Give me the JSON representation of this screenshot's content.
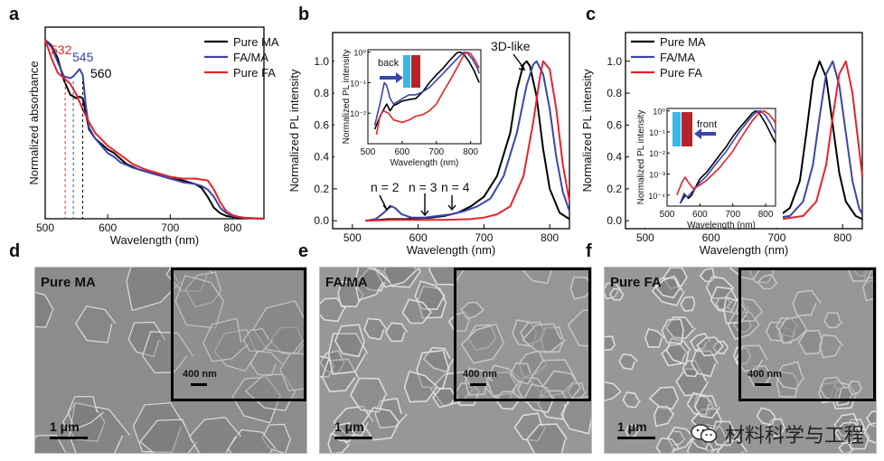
{
  "panel_letters": [
    "a",
    "b",
    "c",
    "d",
    "e",
    "f"
  ],
  "colors": {
    "ma": "#000000",
    "fama": "#3a46a8",
    "fa": "#e8232b",
    "blue_light": "#39b7e7",
    "red_dark": "#b8232a"
  },
  "chart_data": [
    {
      "panel": "a",
      "type": "line",
      "title": "",
      "xlabel": "Wavelength (nm)",
      "ylabel": "Normalized absorbance",
      "xlim": [
        500,
        850
      ],
      "ylim": [
        0,
        1.05
      ],
      "xticks": [
        500,
        600,
        700,
        800
      ],
      "yticks": [],
      "legend": [
        "Pure MA",
        "FA/MA",
        "Pure FA"
      ],
      "legend_position": "top-right",
      "annotations": [
        {
          "text": "532",
          "x": 532,
          "color": "#e8232b"
        },
        {
          "text": "545",
          "x": 545,
          "color": "#3a46a8"
        },
        {
          "text": "560",
          "x": 560,
          "color": "#000000"
        }
      ],
      "series": [
        {
          "name": "Pure MA",
          "color": "#000000",
          "x": [
            500,
            510,
            520,
            530,
            540,
            550,
            555,
            560,
            565,
            570,
            580,
            590,
            600,
            610,
            620,
            630,
            650,
            670,
            700,
            720,
            740,
            750,
            760,
            770,
            780,
            790,
            800,
            820,
            850
          ],
          "y": [
            0.98,
            0.95,
            0.88,
            0.76,
            0.68,
            0.66,
            0.67,
            0.66,
            0.58,
            0.49,
            0.44,
            0.41,
            0.38,
            0.36,
            0.33,
            0.3,
            0.27,
            0.25,
            0.22,
            0.21,
            0.19,
            0.17,
            0.12,
            0.06,
            0.03,
            0.015,
            0.01,
            0.005,
            0.0
          ]
        },
        {
          "name": "FA/MA",
          "color": "#3a46a8",
          "x": [
            500,
            510,
            520,
            530,
            540,
            545,
            550,
            555,
            560,
            565,
            570,
            580,
            590,
            600,
            610,
            620,
            640,
            660,
            680,
            700,
            720,
            740,
            750,
            760,
            770,
            780,
            790,
            800,
            820,
            850
          ],
          "y": [
            0.98,
            0.94,
            0.86,
            0.78,
            0.77,
            0.78,
            0.8,
            0.82,
            0.79,
            0.62,
            0.5,
            0.44,
            0.4,
            0.36,
            0.34,
            0.31,
            0.28,
            0.26,
            0.24,
            0.22,
            0.2,
            0.19,
            0.18,
            0.16,
            0.12,
            0.06,
            0.03,
            0.015,
            0.005,
            0.0
          ]
        },
        {
          "name": "Pure FA",
          "color": "#e8232b",
          "x": [
            500,
            510,
            520,
            530,
            540,
            550,
            560,
            570,
            580,
            600,
            620,
            640,
            660,
            680,
            700,
            720,
            740,
            760,
            770,
            780,
            790,
            800,
            810,
            820,
            850
          ],
          "y": [
            0.98,
            0.88,
            0.8,
            0.77,
            0.74,
            0.68,
            0.6,
            0.53,
            0.47,
            0.4,
            0.35,
            0.3,
            0.27,
            0.25,
            0.23,
            0.22,
            0.22,
            0.21,
            0.16,
            0.09,
            0.04,
            0.02,
            0.01,
            0.005,
            0.0
          ]
        }
      ]
    },
    {
      "panel": "b",
      "type": "line",
      "title": "",
      "xlabel": "Wavelength (nm)",
      "ylabel": "Normalized PL intensity",
      "xlim": [
        470,
        830
      ],
      "ylim": [
        -0.05,
        1.18
      ],
      "xticks": [
        500,
        600,
        700,
        800
      ],
      "yticks": [
        0.0,
        0.2,
        0.4,
        0.6,
        0.8,
        1.0
      ],
      "annotations": [
        "3D-like",
        "n = 2",
        "n = 3",
        "n = 4"
      ],
      "series": [
        {
          "name": "Pure MA",
          "color": "#000000",
          "x": [
            520,
            540,
            555,
            560,
            570,
            580,
            600,
            620,
            640,
            660,
            680,
            700,
            720,
            740,
            750,
            760,
            765,
            770,
            780,
            790,
            800,
            815,
            830
          ],
          "y": [
            0.0,
            0.005,
            0.01,
            0.01,
            0.01,
            0.01,
            0.015,
            0.02,
            0.03,
            0.05,
            0.09,
            0.15,
            0.28,
            0.55,
            0.82,
            0.98,
            1.0,
            0.97,
            0.78,
            0.45,
            0.2,
            0.05,
            0.01
          ]
        },
        {
          "name": "FA/MA",
          "color": "#3a46a8",
          "x": [
            520,
            535,
            545,
            555,
            560,
            565,
            575,
            590,
            610,
            630,
            650,
            670,
            690,
            710,
            730,
            750,
            765,
            775,
            780,
            790,
            800,
            810,
            820,
            830
          ],
          "y": [
            0.0,
            0.01,
            0.04,
            0.08,
            0.09,
            0.08,
            0.04,
            0.02,
            0.02,
            0.03,
            0.04,
            0.06,
            0.09,
            0.14,
            0.28,
            0.55,
            0.85,
            0.98,
            1.0,
            0.92,
            0.7,
            0.4,
            0.18,
            0.06
          ]
        },
        {
          "name": "Pure FA",
          "color": "#e8232b",
          "x": [
            520,
            560,
            600,
            640,
            680,
            700,
            720,
            740,
            760,
            775,
            785,
            790,
            800,
            810,
            820,
            830
          ],
          "y": [
            0.0,
            0.005,
            0.005,
            0.005,
            0.01,
            0.02,
            0.04,
            0.09,
            0.28,
            0.62,
            0.9,
            1.0,
            0.95,
            0.7,
            0.35,
            0.12
          ]
        }
      ]
    },
    {
      "panel": "b-inset",
      "type": "line",
      "title": "",
      "xlabel": "Wavelength (nm)",
      "ylabel": "Normalized PL intensity",
      "yscale": "log",
      "xlim": [
        500,
        830
      ],
      "ylim": [
        0.001,
        1.2
      ],
      "xticks": [
        500,
        600,
        700,
        800
      ],
      "yticks_labels": [
        "10⁻²",
        "10⁻¹",
        "10⁰"
      ],
      "annotations": [
        "back"
      ],
      "series": [
        {
          "name": "Pure MA",
          "color": "#000000",
          "x": [
            520,
            540,
            555,
            565,
            575,
            585,
            600,
            620,
            640,
            660,
            680,
            700,
            720,
            740,
            760,
            770,
            780,
            795,
            810,
            825
          ],
          "y": [
            0.003,
            0.01,
            0.02,
            0.012,
            0.018,
            0.02,
            0.025,
            0.028,
            0.03,
            0.05,
            0.1,
            0.18,
            0.3,
            0.55,
            0.95,
            1.0,
            0.85,
            0.5,
            0.25,
            0.1
          ]
        },
        {
          "name": "FA/MA",
          "color": "#3a46a8",
          "x": [
            520,
            535,
            548,
            555,
            565,
            575,
            590,
            600,
            620,
            640,
            660,
            680,
            700,
            720,
            740,
            760,
            780,
            790,
            805,
            820,
            825
          ],
          "y": [
            0.004,
            0.02,
            0.1,
            0.08,
            0.03,
            0.02,
            0.025,
            0.03,
            0.04,
            0.04,
            0.05,
            0.07,
            0.12,
            0.2,
            0.35,
            0.6,
            1.0,
            0.95,
            0.6,
            0.3,
            0.2
          ]
        },
        {
          "name": "Pure FA",
          "color": "#e8232b",
          "x": [
            525,
            535,
            545,
            560,
            575,
            600,
            620,
            640,
            660,
            680,
            700,
            720,
            740,
            760,
            780,
            790,
            800,
            815,
            825
          ],
          "y": [
            0.002,
            0.008,
            0.012,
            0.01,
            0.006,
            0.005,
            0.006,
            0.008,
            0.009,
            0.012,
            0.02,
            0.05,
            0.12,
            0.3,
            0.8,
            1.0,
            0.9,
            0.5,
            0.3
          ]
        }
      ]
    },
    {
      "panel": "c",
      "type": "line",
      "title": "",
      "xlabel": "Wavelength (nm)",
      "ylabel": "Normalized PL intensity",
      "xlim": [
        470,
        830
      ],
      "ylim": [
        -0.05,
        1.18
      ],
      "xticks": [
        500,
        600,
        700,
        800
      ],
      "yticks": [
        0.0,
        0.2,
        0.4,
        0.6,
        0.8,
        1.0
      ],
      "legend": [
        "Pure MA",
        "FA/MA",
        "Pure FA"
      ],
      "legend_position": "top-left",
      "series": [
        {
          "name": "Pure MA",
          "color": "#000000",
          "x": [
            600,
            660,
            700,
            720,
            735,
            745,
            755,
            765,
            775,
            785,
            795,
            805,
            820,
            830
          ],
          "y": [
            0.0,
            0.002,
            0.02,
            0.08,
            0.25,
            0.55,
            0.88,
            1.0,
            0.9,
            0.6,
            0.3,
            0.12,
            0.03,
            0.01
          ]
        },
        {
          "name": "FA/MA",
          "color": "#3a46a8",
          "x": [
            600,
            680,
            720,
            740,
            755,
            765,
            775,
            785,
            795,
            805,
            815,
            825,
            830
          ],
          "y": [
            0.0,
            0.005,
            0.03,
            0.12,
            0.35,
            0.65,
            0.92,
            1.0,
            0.85,
            0.55,
            0.25,
            0.08,
            0.04
          ]
        },
        {
          "name": "Pure FA",
          "color": "#e8232b",
          "x": [
            600,
            700,
            740,
            760,
            775,
            785,
            795,
            805,
            815,
            825,
            830
          ],
          "y": [
            0.0,
            0.005,
            0.03,
            0.12,
            0.35,
            0.65,
            0.92,
            1.0,
            0.8,
            0.45,
            0.28
          ]
        }
      ]
    },
    {
      "panel": "c-inset",
      "type": "line",
      "title": "",
      "xlabel": "Wavelength (nm)",
      "ylabel": "Normalized PL intensity",
      "yscale": "log",
      "xlim": [
        500,
        830
      ],
      "ylim": [
        3e-05,
        1.3
      ],
      "xticks": [
        500,
        600,
        700,
        800
      ],
      "yticks_labels": [
        "10⁻⁴",
        "10⁻³",
        "10⁻²",
        "10⁻¹",
        "10⁰"
      ],
      "annotations": [
        "front"
      ],
      "series": [
        {
          "name": "Pure MA",
          "color": "#000000",
          "x": [
            540,
            555,
            565,
            575,
            590,
            600,
            620,
            640,
            660,
            680,
            700,
            720,
            740,
            760,
            770,
            780,
            800,
            820,
            830
          ],
          "y": [
            4e-05,
            0.0001,
            7e-05,
            0.0001,
            0.0003,
            0.0006,
            0.0012,
            0.003,
            0.008,
            0.02,
            0.06,
            0.15,
            0.35,
            0.8,
            1.0,
            0.8,
            0.25,
            0.06,
            0.03
          ]
        },
        {
          "name": "FA/MA",
          "color": "#3a46a8",
          "x": [
            540,
            552,
            562,
            572,
            585,
            600,
            620,
            640,
            660,
            680,
            700,
            720,
            740,
            760,
            775,
            785,
            800,
            815,
            830
          ],
          "y": [
            4e-05,
            0.00012,
            8e-05,
            0.00012,
            0.0002,
            0.0004,
            0.0008,
            0.002,
            0.005,
            0.012,
            0.035,
            0.1,
            0.25,
            0.6,
            0.95,
            1.0,
            0.6,
            0.25,
            0.08
          ]
        },
        {
          "name": "Pure FA",
          "color": "#e8232b",
          "x": [
            530,
            545,
            555,
            565,
            580,
            600,
            620,
            640,
            660,
            680,
            700,
            720,
            740,
            760,
            780,
            795,
            810,
            825,
            830
          ],
          "y": [
            0.0001,
            0.0004,
            0.0007,
            0.0004,
            0.0002,
            0.0003,
            0.0005,
            0.001,
            0.002,
            0.005,
            0.012,
            0.04,
            0.12,
            0.35,
            0.8,
            1.0,
            0.7,
            0.35,
            0.25
          ]
        }
      ]
    }
  ],
  "sem_panels": [
    {
      "label": "Pure MA",
      "scale_main": "1 μm",
      "scale_inset": "400 nm"
    },
    {
      "label": "FA/MA",
      "scale_main": "1 μm",
      "scale_inset": "400 nm"
    },
    {
      "label": "Pure FA",
      "scale_main": "1 μm",
      "scale_inset": "400 nm"
    }
  ],
  "watermark": {
    "text": "材料科学与工程",
    "icon": "wechat-icon"
  }
}
